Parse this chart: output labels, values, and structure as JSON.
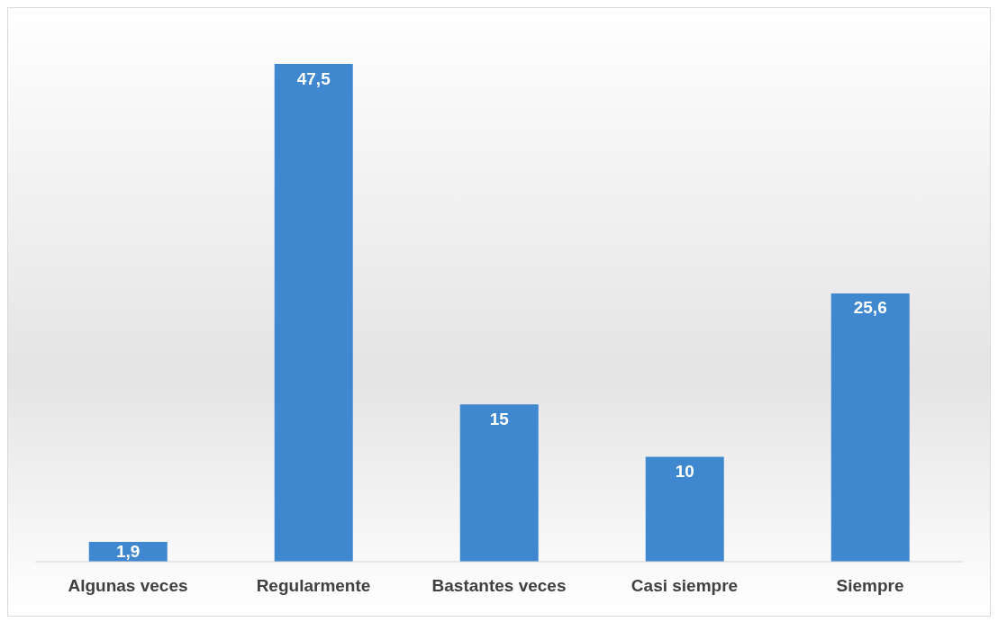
{
  "chart_data": {
    "type": "bar",
    "categories": [
      "Algunas veces",
      "Regularmente",
      "Bastantes veces",
      "Casi siempre",
      "Siempre"
    ],
    "values": [
      1.9,
      47.5,
      15,
      10,
      25.6
    ],
    "value_labels": [
      "1,9",
      "47,5",
      "15",
      "10",
      "25,6"
    ],
    "color": "#3f88d0",
    "grid": false,
    "legend": false
  }
}
